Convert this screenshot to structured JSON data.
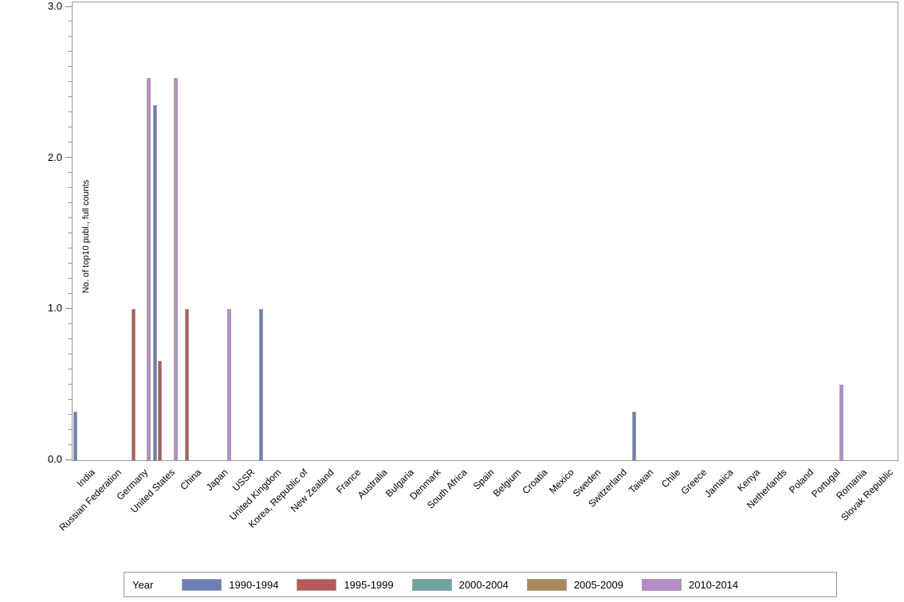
{
  "chart_data": {
    "type": "bar",
    "title": "",
    "xlabel": "",
    "ylabel": "No. of top10 publ., full counts",
    "ylim": [
      0,
      3
    ],
    "yticks": [
      0,
      1,
      2,
      3
    ],
    "ytick_labels": [
      "0.0",
      "1.0",
      "2.0",
      "3.0"
    ],
    "minor_tick_step": 0.1,
    "grid": false,
    "legend_title": "Year",
    "legend_position": "bottom",
    "categories": [
      "India",
      "Russian Federation",
      "Germany",
      "United States",
      "China",
      "Japan",
      "USSR",
      "United Kingdom",
      "Korea, Republic of",
      "New Zealand",
      "France",
      "Australia",
      "Bulgaria",
      "Denmark",
      "South Africa",
      "Spain",
      "Belgium",
      "Croatia",
      "Mexico",
      "Sweden",
      "Switzerland",
      "Taiwan",
      "Chile",
      "Greece",
      "Jamaica",
      "Kenya",
      "Netherlands",
      "Poland",
      "Portugal",
      "Romania",
      "Slovak Republic"
    ],
    "series": [
      {
        "name": "1990-1994",
        "color": "#6e7fb3",
        "values": [
          0.32,
          0,
          0,
          2.35,
          0,
          0,
          0,
          1.0,
          0,
          0,
          0,
          0,
          0,
          0,
          0,
          0,
          0,
          0,
          0,
          0,
          0,
          0.32,
          0,
          0,
          0,
          0,
          0,
          0,
          0,
          0,
          0
        ]
      },
      {
        "name": "1995-1999",
        "color": "#b55a56",
        "values": [
          0,
          0,
          1.0,
          0.66,
          1.0,
          0,
          0,
          0,
          0,
          0,
          0,
          0,
          0,
          0,
          0,
          0,
          0,
          0,
          0,
          0,
          0,
          0,
          0,
          0,
          0,
          0,
          0,
          0,
          0,
          0,
          0
        ]
      },
      {
        "name": "2000-2004",
        "color": "#6fa5a0",
        "values": [
          0,
          0,
          0,
          0,
          0,
          0,
          0,
          0,
          0,
          0,
          0,
          0,
          0,
          0,
          0,
          0,
          0,
          0,
          0,
          0,
          0,
          0,
          0,
          0,
          0,
          0,
          0,
          0,
          0,
          0,
          0
        ]
      },
      {
        "name": "2005-2009",
        "color": "#aa895c",
        "values": [
          0,
          0,
          0,
          0,
          0,
          0,
          0,
          0,
          0,
          0,
          0,
          0,
          0,
          0,
          0,
          0,
          0,
          0,
          0,
          0,
          0,
          0,
          0,
          0,
          0,
          0,
          0,
          0,
          0,
          0,
          0
        ]
      },
      {
        "name": "2010-2014",
        "color": "#b78bc8",
        "values": [
          0,
          0,
          2.53,
          2.53,
          0,
          1.0,
          0,
          0,
          0,
          0,
          0,
          0,
          0,
          0,
          0,
          0,
          0,
          0,
          0,
          0,
          0,
          0,
          0,
          0,
          0,
          0,
          0,
          0,
          0.5,
          0,
          0
        ]
      }
    ],
    "colors": {
      "plot_border": "#939ba2",
      "tick": "#7f878e",
      "bar_outline": "#a3a3a3",
      "text": "#000000",
      "background": "#ffffff"
    }
  }
}
